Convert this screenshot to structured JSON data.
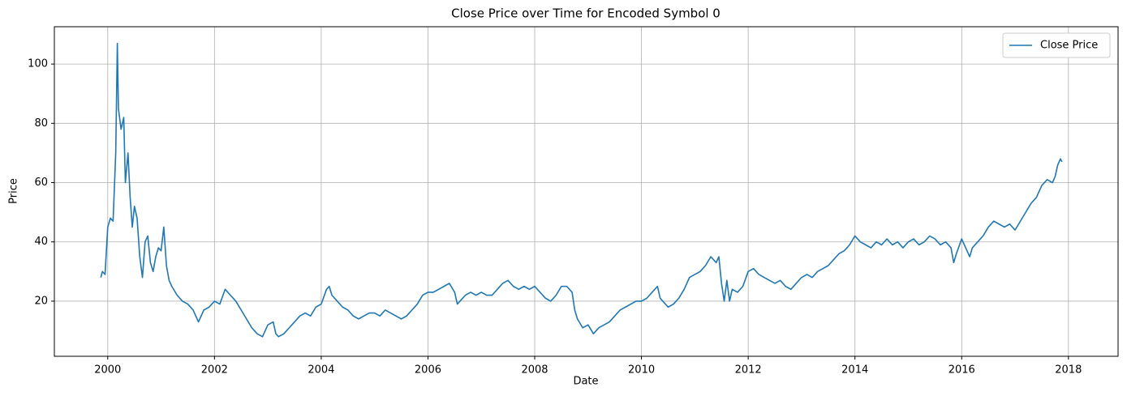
{
  "chart_data": {
    "type": "line",
    "title": "Close Price over Time for Encoded Symbol 0",
    "x_label": "Date",
    "y_label": "Price",
    "x": [
      1999.87,
      1999.9,
      1999.95,
      2000.0,
      2000.05,
      2000.1,
      2000.15,
      2000.18,
      2000.2,
      2000.25,
      2000.3,
      2000.33,
      2000.38,
      2000.42,
      2000.46,
      2000.5,
      2000.55,
      2000.6,
      2000.65,
      2000.7,
      2000.75,
      2000.8,
      2000.85,
      2000.9,
      2000.95,
      2001.0,
      2001.05,
      2001.1,
      2001.15,
      2001.2,
      2001.3,
      2001.4,
      2001.5,
      2001.6,
      2001.7,
      2001.8,
      2001.9,
      2002.0,
      2002.1,
      2002.2,
      2002.3,
      2002.4,
      2002.5,
      2002.6,
      2002.7,
      2002.8,
      2002.9,
      2003.0,
      2003.1,
      2003.15,
      2003.2,
      2003.3,
      2003.4,
      2003.5,
      2003.6,
      2003.7,
      2003.8,
      2003.9,
      2004.0,
      2004.1,
      2004.15,
      2004.2,
      2004.3,
      2004.4,
      2004.5,
      2004.6,
      2004.7,
      2004.8,
      2004.9,
      2005.0,
      2005.1,
      2005.2,
      2005.3,
      2005.4,
      2005.5,
      2005.6,
      2005.7,
      2005.8,
      2005.9,
      2006.0,
      2006.1,
      2006.2,
      2006.3,
      2006.4,
      2006.5,
      2006.55,
      2006.6,
      2006.7,
      2006.8,
      2006.9,
      2007.0,
      2007.1,
      2007.2,
      2007.3,
      2007.4,
      2007.5,
      2007.6,
      2007.7,
      2007.8,
      2007.9,
      2008.0,
      2008.1,
      2008.2,
      2008.3,
      2008.4,
      2008.5,
      2008.6,
      2008.7,
      2008.75,
      2008.8,
      2008.9,
      2009.0,
      2009.1,
      2009.2,
      2009.3,
      2009.4,
      2009.5,
      2009.6,
      2009.7,
      2009.8,
      2009.9,
      2010.0,
      2010.1,
      2010.2,
      2010.3,
      2010.35,
      2010.4,
      2010.5,
      2010.6,
      2010.7,
      2010.8,
      2010.9,
      2011.0,
      2011.1,
      2011.2,
      2011.3,
      2011.4,
      2011.45,
      2011.5,
      2011.55,
      2011.6,
      2011.65,
      2011.7,
      2011.8,
      2011.9,
      2012.0,
      2012.1,
      2012.2,
      2012.3,
      2012.4,
      2012.5,
      2012.6,
      2012.7,
      2012.8,
      2012.9,
      2013.0,
      2013.1,
      2013.2,
      2013.3,
      2013.4,
      2013.5,
      2013.6,
      2013.7,
      2013.8,
      2013.9,
      2014.0,
      2014.1,
      2014.2,
      2014.3,
      2014.4,
      2014.5,
      2014.6,
      2014.7,
      2014.8,
      2014.9,
      2015.0,
      2015.1,
      2015.2,
      2015.3,
      2015.4,
      2015.5,
      2015.6,
      2015.7,
      2015.8,
      2015.85,
      2015.9,
      2016.0,
      2016.1,
      2016.15,
      2016.2,
      2016.3,
      2016.4,
      2016.5,
      2016.6,
      2016.7,
      2016.8,
      2016.9,
      2017.0,
      2017.1,
      2017.2,
      2017.3,
      2017.4,
      2017.5,
      2017.6,
      2017.7,
      2017.75,
      2017.8,
      2017.85,
      2017.88
    ],
    "series": [
      {
        "name": "Close Price",
        "color": "#1f77b4",
        "values": [
          28,
          30,
          29,
          45,
          48,
          47,
          70,
          107,
          85,
          78,
          82,
          60,
          70,
          55,
          45,
          52,
          48,
          35,
          28,
          40,
          42,
          33,
          30,
          35,
          38,
          37,
          45,
          32,
          27,
          25,
          22,
          20,
          19,
          17,
          13,
          17,
          18,
          20,
          19,
          24,
          22,
          20,
          17,
          14,
          11,
          9,
          8,
          12,
          13,
          9,
          8,
          9,
          11,
          13,
          15,
          16,
          15,
          18,
          19,
          24,
          25,
          22,
          20,
          18,
          17,
          15,
          14,
          15,
          16,
          16,
          15,
          17,
          16,
          15,
          14,
          15,
          17,
          19,
          22,
          23,
          23,
          24,
          25,
          26,
          23,
          19,
          20,
          22,
          23,
          22,
          23,
          22,
          22,
          24,
          26,
          27,
          25,
          24,
          25,
          24,
          25,
          23,
          21,
          20,
          22,
          25,
          25,
          23,
          17,
          14,
          11,
          12,
          9,
          11,
          12,
          13,
          15,
          17,
          18,
          19,
          20,
          20,
          21,
          23,
          25,
          21,
          20,
          18,
          19,
          21,
          24,
          28,
          29,
          30,
          32,
          35,
          33,
          35,
          26,
          20,
          27,
          20,
          24,
          23,
          25,
          30,
          31,
          29,
          28,
          27,
          26,
          27,
          25,
          24,
          26,
          28,
          29,
          28,
          30,
          31,
          32,
          34,
          36,
          37,
          39,
          42,
          40,
          39,
          38,
          40,
          39,
          41,
          39,
          40,
          38,
          40,
          41,
          39,
          40,
          42,
          41,
          39,
          40,
          38,
          33,
          36,
          41,
          37,
          35,
          38,
          40,
          42,
          45,
          47,
          46,
          45,
          46,
          44,
          47,
          50,
          53,
          55,
          59,
          61,
          60,
          62,
          66,
          68,
          67
        ]
      }
    ],
    "xlim": [
      1999.0,
      2018.93
    ],
    "xticks": [
      2000,
      2002,
      2004,
      2006,
      2008,
      2010,
      2012,
      2014,
      2016,
      2018
    ],
    "ylim": [
      1.4,
      112.6
    ],
    "yticks": [
      20,
      40,
      60,
      80,
      100
    ],
    "grid": true,
    "legend": "upper right"
  }
}
